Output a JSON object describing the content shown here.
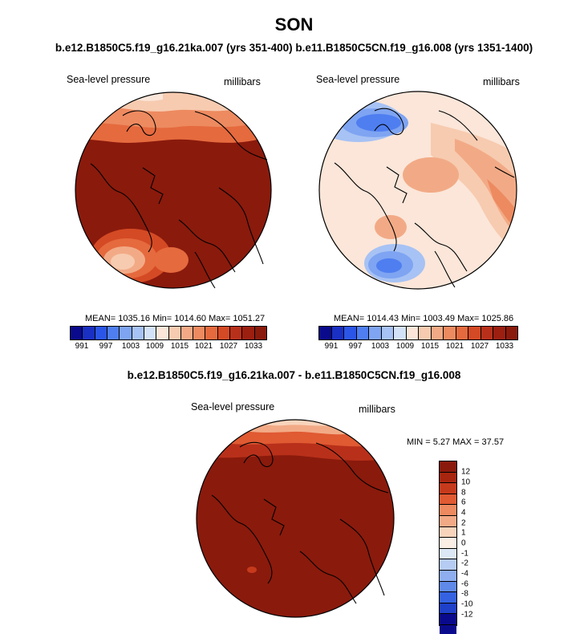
{
  "title": "SON",
  "subtitle": "b.e12.B1850C5.f19_g16.21ka.007 (yrs 351-400) b.e11.B1850C5CN.f19_g16.008 (yrs 1351-1400)",
  "diff_title": "b.e12.B1850C5.f19_g16.21ka.007 - b.e11.B1850C5CN.f19_g16.008",
  "panels": {
    "left": {
      "field": "Sea-level pressure",
      "units": "millibars",
      "stats": "MEAN= 1035.16  Min= 1014.60  Max= 1051.27"
    },
    "right": {
      "field": "Sea-level pressure",
      "units": "millibars",
      "stats": "MEAN= 1014.43  Min= 1003.49  Max= 1025.86"
    },
    "diff": {
      "field": "Sea-level pressure",
      "units": "millibars",
      "stats": "MIN =   5.27 MAX =  37.57"
    }
  },
  "colorbar_labels": [
    "991",
    "997",
    "1003",
    "1009",
    "1015",
    "1021",
    "1027",
    "1033"
  ],
  "diff_colorbar_labels": [
    "12",
    "10",
    "8",
    "6",
    "4",
    "2",
    "1",
    "0",
    "-1",
    "-2",
    "-4",
    "-6",
    "-8",
    "-10",
    "-12"
  ],
  "colors": {
    "abs_scale": [
      "#0a0a8c",
      "#1a2fc4",
      "#2b55e6",
      "#4f7ef0",
      "#7ea4f2",
      "#a7c2f4",
      "#d4e2f8",
      "#fbe6d9",
      "#f7cbb0",
      "#f2aa86",
      "#ed8a60",
      "#e56a3e",
      "#d44a24",
      "#b8301a",
      "#9c1f10",
      "#8a1a0c"
    ],
    "diff_scale": [
      "#8a1a0c",
      "#a8260f",
      "#c63a1c",
      "#e05a32",
      "#ed8a60",
      "#f2aa86",
      "#f9d4bc",
      "#fbeee4",
      "#dde8f6",
      "#b7ccf3",
      "#8eaef0",
      "#5f8ae9",
      "#3562e0",
      "#1f40c8",
      "#0a0a8c"
    ],
    "deep_red": "#8a1a0c"
  }
}
